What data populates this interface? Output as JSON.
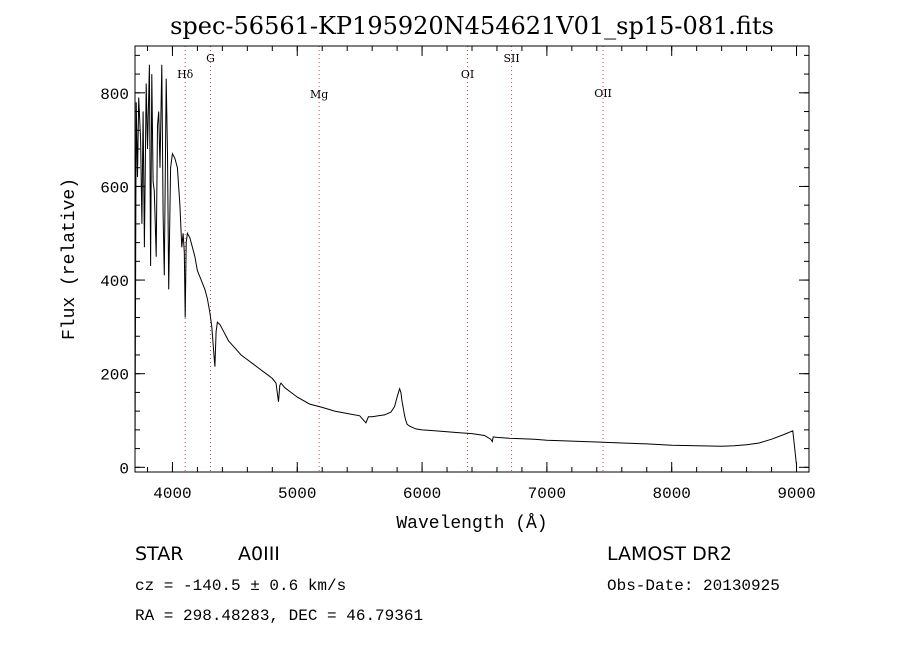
{
  "chart_data": {
    "type": "line",
    "title": "spec-56561-KP195920N454621V01_sp15-081.fits",
    "xlabel": "Wavelength (Å)",
    "ylabel": "Flux (relative)",
    "xlim": [
      3700,
      9100
    ],
    "ylim": [
      -10,
      900
    ],
    "xticks": [
      4000,
      5000,
      6000,
      7000,
      8000,
      9000
    ],
    "yticks": [
      0,
      200,
      400,
      600,
      800
    ],
    "grid": false,
    "lines": [
      {
        "name": "Hδ",
        "x": 4102
      },
      {
        "name": "G",
        "x": 4305
      },
      {
        "name": "Mg",
        "x": 5175
      },
      {
        "name": "OI",
        "x": 6364
      },
      {
        "name": "SII",
        "x": 6717
      },
      {
        "name": "OII",
        "x": 7450
      }
    ],
    "series": [
      {
        "x": [
          3700,
          3710,
          3720,
          3730,
          3745,
          3755,
          3765,
          3775,
          3790,
          3800,
          3815,
          3825,
          3835,
          3845,
          3855,
          3870,
          3880,
          3890,
          3900,
          3915,
          3925,
          3935,
          3950,
          3960,
          3970,
          3985,
          4000,
          4020,
          4040,
          4060,
          4075,
          4085,
          4095,
          4102,
          4110,
          4120,
          4140,
          4160,
          4180,
          4200,
          4230,
          4260,
          4280,
          4300,
          4315,
          4330,
          4340,
          4350,
          4360,
          4380,
          4400,
          4450,
          4500,
          4550,
          4600,
          4650,
          4700,
          4750,
          4800,
          4830,
          4850,
          4860,
          4870,
          4900,
          4950,
          5000,
          5100,
          5200,
          5300,
          5400,
          5500,
          5550,
          5570,
          5600,
          5650,
          5700,
          5750,
          5780,
          5800,
          5820,
          5830,
          5840,
          5850,
          5860,
          5870,
          5880,
          5900,
          5950,
          6000,
          6100,
          6200,
          6300,
          6400,
          6500,
          6550,
          6563,
          6570,
          6600,
          6700,
          6800,
          6900,
          7000,
          7200,
          7400,
          7600,
          7800,
          8000,
          8200,
          8400,
          8500,
          8600,
          8700,
          8800,
          8900,
          8970,
          9000
        ],
        "y": [
          20,
          780,
          620,
          790,
          700,
          520,
          760,
          470,
          820,
          680,
          860,
          430,
          840,
          610,
          590,
          450,
          730,
          760,
          640,
          860,
          540,
          410,
          830,
          670,
          380,
          640,
          670,
          660,
          640,
          560,
          470,
          500,
          460,
          320,
          480,
          500,
          490,
          470,
          450,
          420,
          400,
          380,
          360,
          330,
          300,
          250,
          215,
          290,
          310,
          305,
          295,
          270,
          255,
          240,
          230,
          220,
          210,
          200,
          190,
          180,
          140,
          175,
          180,
          170,
          160,
          150,
          135,
          128,
          120,
          115,
          110,
          95,
          108,
          108,
          110,
          112,
          118,
          130,
          150,
          168,
          160,
          140,
          125,
          110,
          100,
          92,
          88,
          82,
          80,
          78,
          76,
          74,
          72,
          68,
          60,
          55,
          65,
          64,
          62,
          61,
          60,
          58,
          56,
          54,
          52,
          50,
          47,
          46,
          45,
          46,
          48,
          52,
          60,
          70,
          78,
          5
        ]
      }
    ]
  },
  "footer": {
    "object_class": "STAR",
    "subclass": "A0III",
    "survey": "LAMOST DR2",
    "redshift": "cz = -140.5 ± 0.6 km/s",
    "obs_date": "Obs-Date: 20130925",
    "coords": "RA = 298.48283, DEC =  46.79361"
  }
}
